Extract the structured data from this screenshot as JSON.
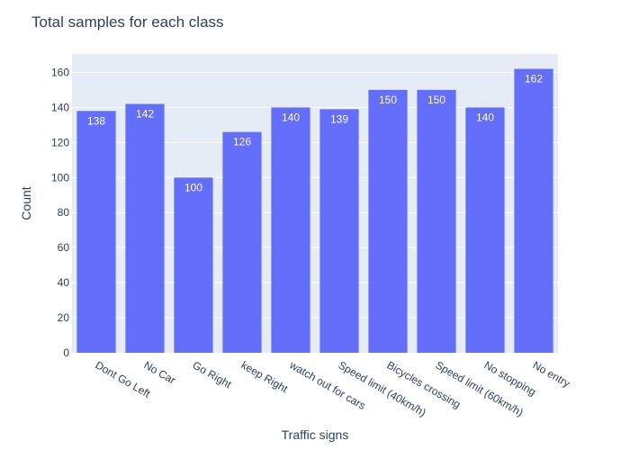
{
  "chart_data": {
    "type": "bar",
    "title": "Total samples for each class",
    "xlabel": "Traffic signs",
    "ylabel": "Count",
    "categories": [
      "Dont Go Left",
      "No Car",
      "Go Right",
      "keep Right",
      "watch out for cars",
      "Speed limit (40km/h)",
      "Bicycles crossing",
      "Speed limit (60km/h)",
      "No stopping",
      "No entry"
    ],
    "values": [
      138,
      142,
      100,
      126,
      140,
      139,
      150,
      150,
      140,
      162
    ],
    "ylim": [
      0,
      170.5
    ],
    "yticks": [
      0,
      20,
      40,
      60,
      80,
      100,
      120,
      140,
      160
    ],
    "grid": true,
    "data_labels": true,
    "colors": {
      "bar": "#636efa",
      "plot_bg": "#e5ecf6",
      "text": "#2a3f5f"
    }
  }
}
